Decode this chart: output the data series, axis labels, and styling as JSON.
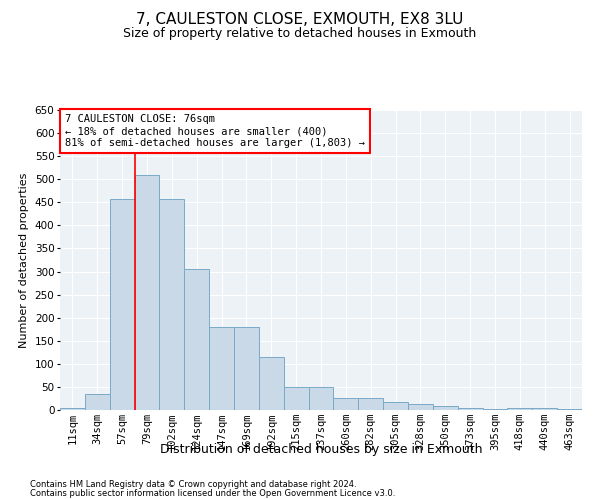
{
  "title": "7, CAULESTON CLOSE, EXMOUTH, EX8 3LU",
  "subtitle": "Size of property relative to detached houses in Exmouth",
  "xlabel": "Distribution of detached houses by size in Exmouth",
  "ylabel": "Number of detached properties",
  "categories": [
    "11sqm",
    "34sqm",
    "57sqm",
    "79sqm",
    "102sqm",
    "124sqm",
    "147sqm",
    "169sqm",
    "192sqm",
    "215sqm",
    "237sqm",
    "260sqm",
    "282sqm",
    "305sqm",
    "328sqm",
    "350sqm",
    "373sqm",
    "395sqm",
    "418sqm",
    "440sqm",
    "463sqm"
  ],
  "values": [
    5,
    35,
    458,
    510,
    457,
    305,
    180,
    180,
    115,
    50,
    50,
    27,
    27,
    18,
    12,
    8,
    5,
    2,
    5,
    5,
    2
  ],
  "bar_color": "#c9d9e8",
  "bar_edge_color": "#7aaac8",
  "vline_color": "red",
  "vline_pos": 2.5,
  "annotation_text": "7 CAULESTON CLOSE: 76sqm\n← 18% of detached houses are smaller (400)\n81% of semi-detached houses are larger (1,803) →",
  "annotation_box_color": "white",
  "annotation_box_edge": "red",
  "ylim": [
    0,
    650
  ],
  "yticks": [
    0,
    50,
    100,
    150,
    200,
    250,
    300,
    350,
    400,
    450,
    500,
    550,
    600,
    650
  ],
  "bg_color": "#edf2f7",
  "grid_color": "white",
  "footer1": "Contains HM Land Registry data © Crown copyright and database right 2024.",
  "footer2": "Contains public sector information licensed under the Open Government Licence v3.0.",
  "title_fontsize": 11,
  "subtitle_fontsize": 9,
  "ylabel_fontsize": 8,
  "xlabel_fontsize": 9,
  "tick_fontsize": 7.5,
  "footer_fontsize": 6,
  "ann_fontsize": 7.5
}
